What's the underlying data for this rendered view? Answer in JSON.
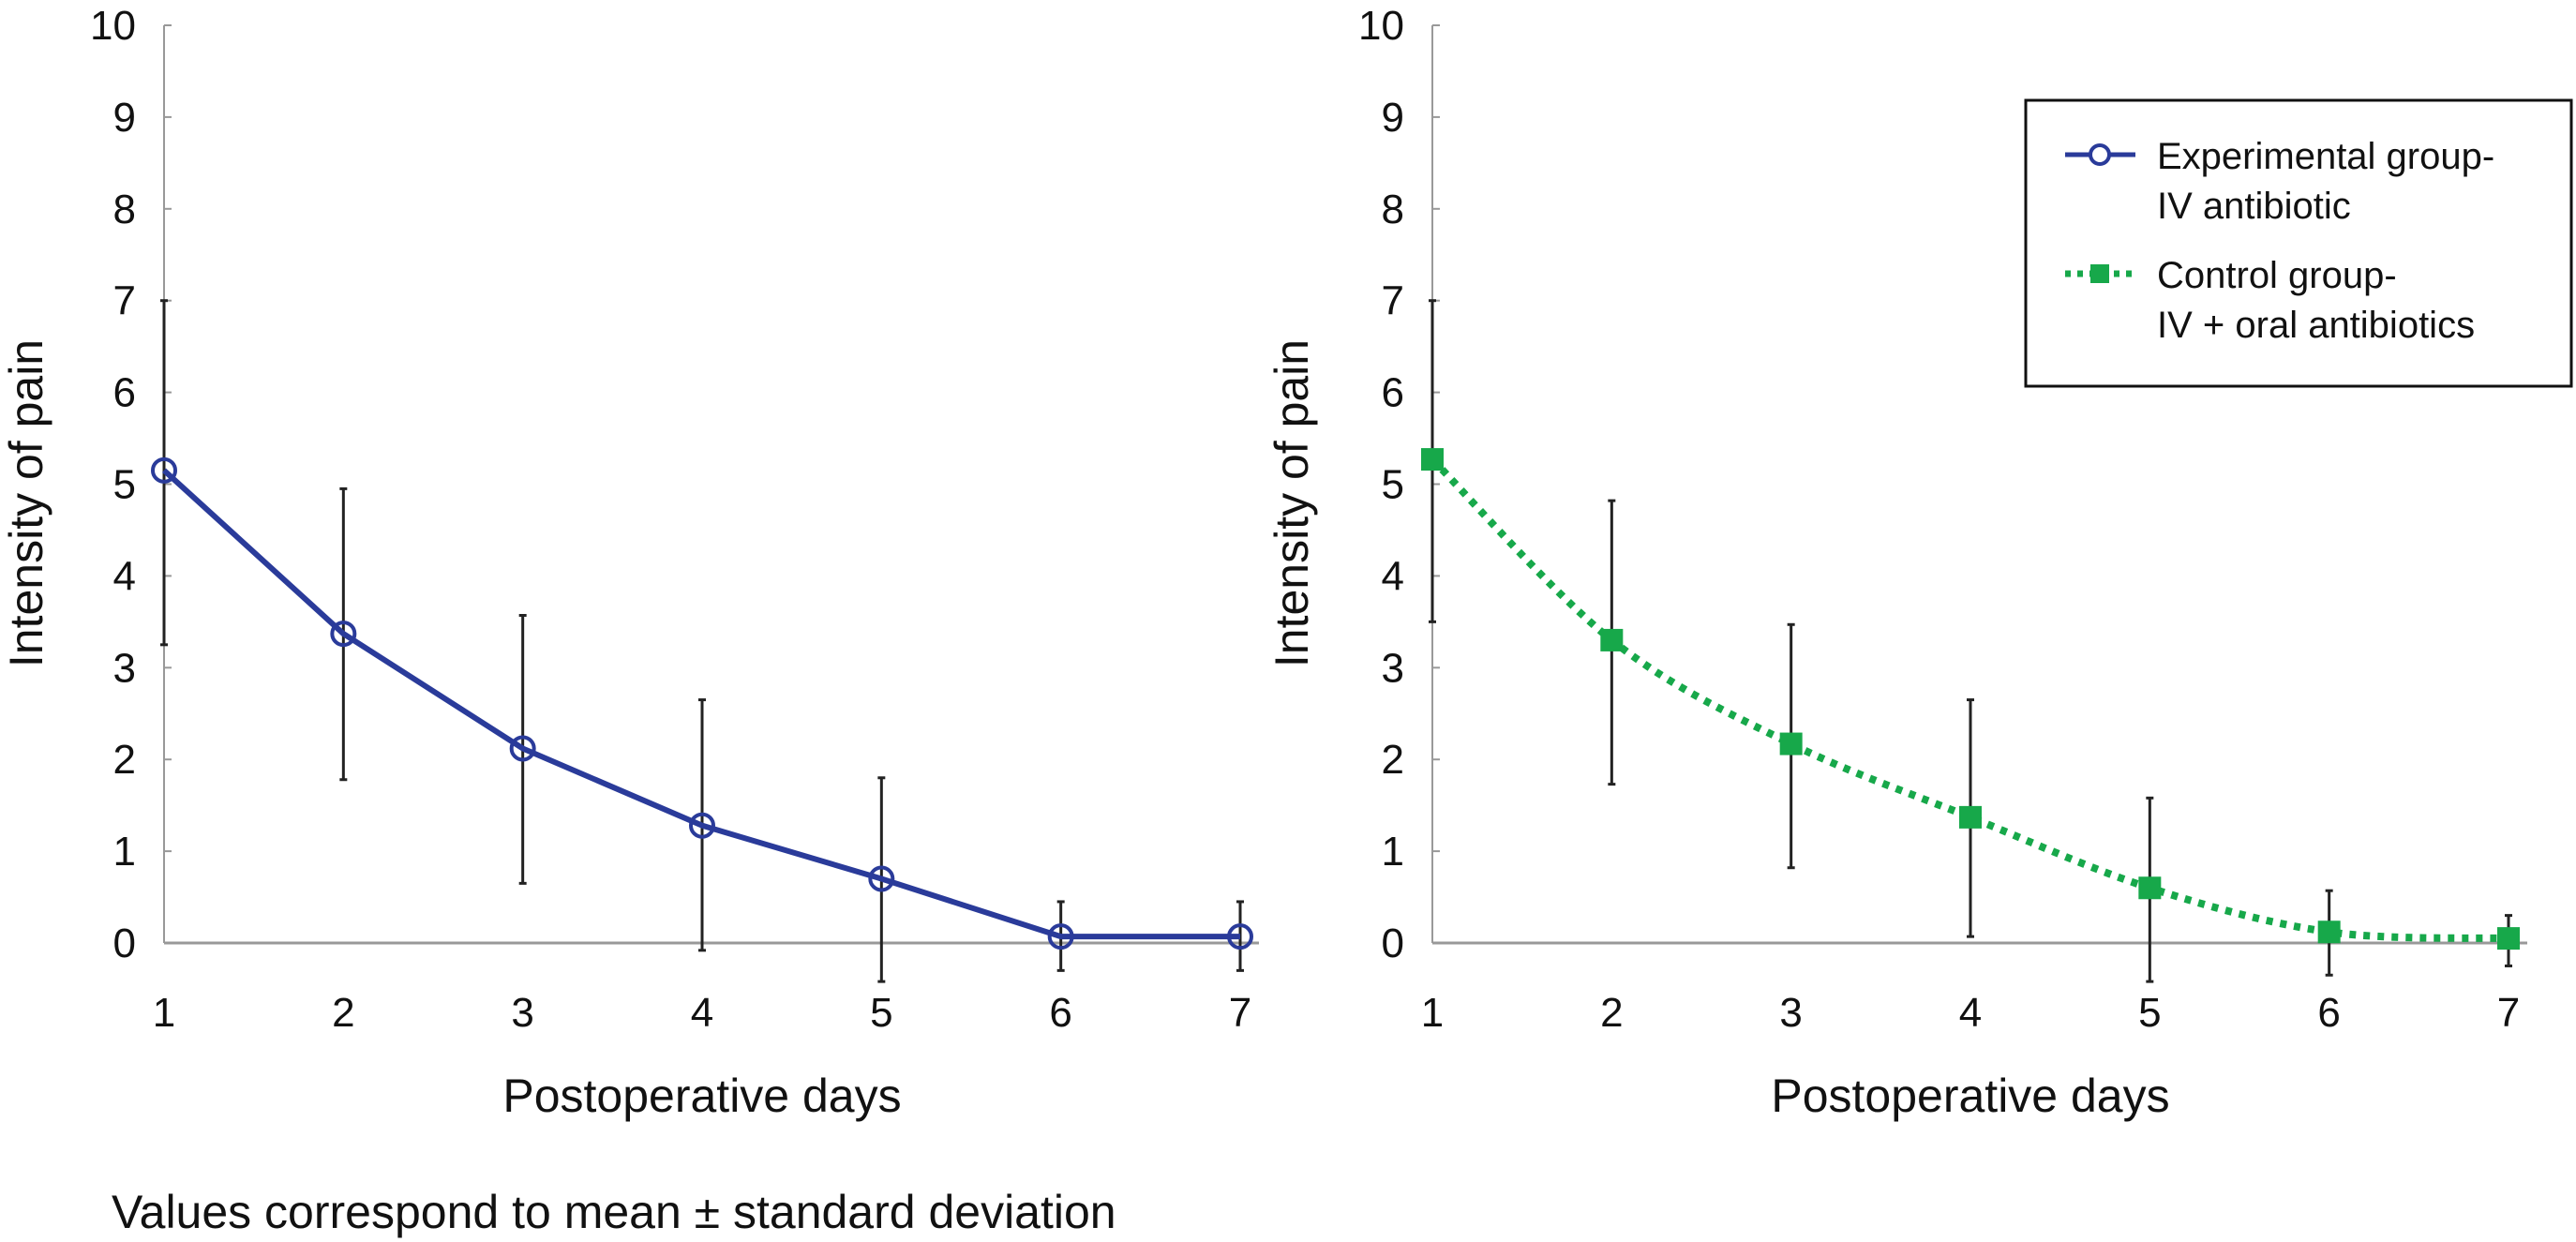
{
  "caption": "Values correspond to mean ± standard deviation",
  "legend": {
    "entries": [
      {
        "line1": "Experimental group-",
        "line2": "IV antibiotic",
        "color": "#2a3b9a",
        "marker": "open-circle",
        "style": "solid"
      },
      {
        "line1": "Control group-",
        "line2": "IV + oral antibiotics",
        "color": "#17a84a",
        "marker": "filled-square",
        "style": "dotted"
      }
    ]
  },
  "chart_data": [
    {
      "type": "line",
      "xlabel": "Postoperative days",
      "ylabel": "Intensity of pain",
      "x": [
        1,
        2,
        3,
        4,
        5,
        6,
        7
      ],
      "xlim": [
        1,
        7
      ],
      "ylim": [
        0,
        10
      ],
      "yticks": [
        0,
        1,
        2,
        3,
        4,
        5,
        6,
        7,
        8,
        9,
        10
      ],
      "xticks": [
        1,
        2,
        3,
        4,
        5,
        6,
        7
      ],
      "grid": false,
      "series": [
        {
          "color": "#2a3b9a",
          "marker": "open-circle",
          "style": "solid",
          "values": [
            5.15,
            3.37,
            2.12,
            1.28,
            0.7,
            0.07,
            0.07
          ],
          "err_high": [
            7.0,
            4.95,
            3.57,
            2.65,
            1.8,
            0.45,
            0.45
          ],
          "err_low": [
            3.25,
            1.78,
            0.65,
            -0.08,
            -0.42,
            -0.3,
            -0.3
          ]
        }
      ]
    },
    {
      "type": "line",
      "xlabel": "Postoperative days",
      "ylabel": "Intensity of pain",
      "x": [
        1,
        2,
        3,
        4,
        5,
        6,
        7
      ],
      "xlim": [
        1,
        7
      ],
      "ylim": [
        0,
        10
      ],
      "yticks": [
        0,
        1,
        2,
        3,
        4,
        5,
        6,
        7,
        8,
        9,
        10
      ],
      "xticks": [
        1,
        2,
        3,
        4,
        5,
        6,
        7
      ],
      "grid": false,
      "legend_position": "top-right",
      "series": [
        {
          "color": "#17a84a",
          "marker": "filled-square",
          "style": "dotted",
          "values": [
            5.27,
            3.3,
            2.17,
            1.37,
            0.6,
            0.12,
            0.05
          ],
          "err_high": [
            7.0,
            4.82,
            3.47,
            2.65,
            1.58,
            0.57,
            0.3
          ],
          "err_low": [
            3.5,
            1.73,
            0.82,
            0.07,
            -0.42,
            -0.35,
            -0.25
          ]
        }
      ]
    }
  ]
}
